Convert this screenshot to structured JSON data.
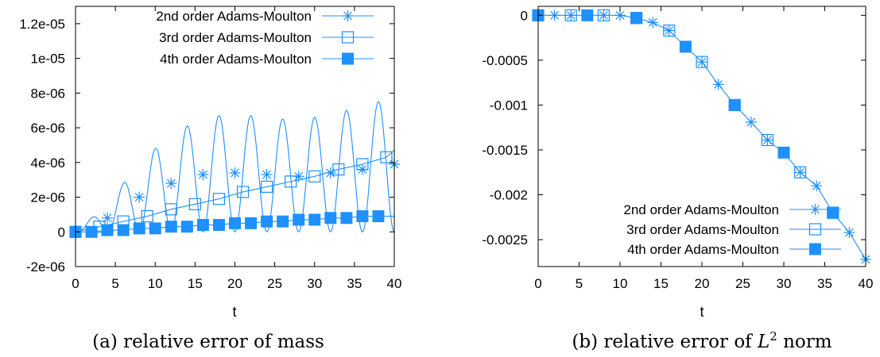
{
  "chart_data": [
    {
      "type": "line",
      "caption": "(a) relative error of mass",
      "xlabel": "t",
      "ylabel": "",
      "xlim": [
        0,
        40
      ],
      "ylim": [
        -2e-06,
        1.3e-05
      ],
      "xticks": [
        0,
        5,
        10,
        15,
        20,
        25,
        30,
        35,
        40
      ],
      "xtick_labels": [
        "0",
        "5",
        "10",
        "15",
        "20",
        "25",
        "30",
        "35",
        "40"
      ],
      "yticks": [
        -2e-06,
        0,
        2e-06,
        4e-06,
        6e-06,
        8e-06,
        1e-05,
        1.2e-05
      ],
      "ytick_labels": [
        "-2e-06",
        "0",
        "2e-06",
        "4e-06",
        "6e-06",
        "8e-06",
        "1e-05",
        "1.2e-05"
      ],
      "legend_position": "top-right",
      "series": [
        {
          "name": "2nd order Adams-Moulton",
          "marker": "star",
          "line": "oscillating",
          "markers": {
            "x": [
              0,
              4,
              8,
              12,
              16,
              20,
              24,
              28,
              32,
              36,
              40
            ],
            "y": [
              0,
              8e-07,
              2e-06,
              2.8e-06,
              3.3e-06,
              3.4e-06,
              3.3e-06,
              3.2e-06,
              3.4e-06,
              3.6e-06,
              3.9e-06
            ]
          }
        },
        {
          "name": "3rd order Adams-Moulton",
          "marker": "open-square",
          "x": [
            0,
            3,
            6,
            9,
            12,
            15,
            18,
            21,
            24,
            27,
            30,
            33,
            36,
            39
          ],
          "y": [
            0,
            3e-07,
            6e-07,
            9e-07,
            1.3e-06,
            1.6e-06,
            1.9e-06,
            2.3e-06,
            2.6e-06,
            2.9e-06,
            3.2e-06,
            3.6e-06,
            3.9e-06,
            4.3e-06
          ]
        },
        {
          "name": "4th order Adams-Moulton",
          "marker": "filled-square",
          "x": [
            0,
            2,
            4,
            6,
            8,
            10,
            12,
            14,
            16,
            18,
            20,
            22,
            24,
            26,
            28,
            30,
            32,
            34,
            36,
            38
          ],
          "y": [
            0,
            0,
            1e-07,
            1e-07,
            2e-07,
            2e-07,
            3e-07,
            3e-07,
            4e-07,
            4e-07,
            5e-07,
            5e-07,
            6e-07,
            6e-07,
            7e-07,
            7e-07,
            8e-07,
            8e-07,
            9e-07,
            9e-07
          ]
        }
      ]
    },
    {
      "type": "line",
      "caption_prefix": "(b) relative error of ",
      "caption_math": "L",
      "caption_sup": "2",
      "caption_suffix": " norm",
      "xlabel": "t",
      "ylabel": "",
      "xlim": [
        0,
        40
      ],
      "ylim": [
        -0.0028,
        0.0001
      ],
      "xticks": [
        0,
        5,
        10,
        15,
        20,
        25,
        30,
        35,
        40
      ],
      "xtick_labels": [
        "0",
        "5",
        "10",
        "15",
        "20",
        "25",
        "30",
        "35",
        "40"
      ],
      "yticks": [
        0,
        -0.0005,
        -0.001,
        -0.0015,
        -0.002,
        -0.0025
      ],
      "ytick_labels": [
        "0",
        "-0.0005",
        "-0.001",
        "-0.0015",
        "-0.002",
        "-0.0025"
      ],
      "legend_position": "bottom-right",
      "curve": {
        "x": [
          0,
          2,
          4,
          6,
          8,
          10,
          12,
          14,
          16,
          18,
          20,
          22,
          24,
          26,
          28,
          30,
          32,
          34,
          36,
          38,
          40
        ],
        "y": [
          0,
          0,
          0,
          0,
          0,
          0,
          -3e-05,
          -8e-05,
          -0.00017,
          -0.00035,
          -0.00052,
          -0.00077,
          -0.001,
          -0.00119,
          -0.00139,
          -0.00153,
          -0.00175,
          -0.0019,
          -0.0022,
          -0.00242,
          -0.00272
        ]
      },
      "series": [
        {
          "name": "2nd order Adams-Moulton",
          "marker": "star",
          "x": [
            0,
            2,
            4,
            6,
            8,
            10,
            12,
            14,
            16,
            18,
            20,
            22,
            24,
            26,
            28,
            30,
            32,
            34,
            36,
            38,
            40
          ],
          "y": [
            0,
            0,
            0,
            0,
            0,
            0,
            -3e-05,
            -8e-05,
            -0.00017,
            -0.00035,
            -0.00052,
            -0.00077,
            -0.001,
            -0.00119,
            -0.00139,
            -0.00153,
            -0.00175,
            -0.0019,
            -0.0022,
            -0.00242,
            -0.00272
          ]
        },
        {
          "name": "3rd order Adams-Moulton",
          "marker": "open-square",
          "x": [
            0,
            4,
            8,
            12,
            16,
            20,
            24,
            28,
            32,
            36
          ],
          "y": [
            0,
            0,
            0,
            -3e-05,
            -0.00017,
            -0.00052,
            -0.001,
            -0.00139,
            -0.00175,
            -0.0022
          ]
        },
        {
          "name": "4th order Adams-Moulton",
          "marker": "filled-square",
          "x": [
            0,
            6,
            12,
            18,
            24,
            30,
            36
          ],
          "y": [
            0,
            0,
            -3e-05,
            -0.00035,
            -0.001,
            -0.00153,
            -0.0022
          ]
        }
      ]
    }
  ],
  "colors": {
    "series": "#1e90ff",
    "axes": "#000000"
  }
}
